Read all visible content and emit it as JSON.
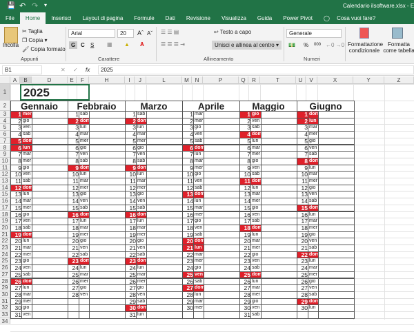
{
  "window": {
    "title": "Calendario ilsoftware.xlsx - Excel",
    "qat": [
      "save-icon",
      "undo-icon",
      "redo-icon",
      "customize-icon"
    ]
  },
  "tabs": [
    "File",
    "Home",
    "Inserisci",
    "Layout di pagina",
    "Formule",
    "Dati",
    "Revisione",
    "Visualizza",
    "Guida",
    "Power Pivot"
  ],
  "tell_me": "Cosa vuoi fare?",
  "ribbon": {
    "clipboard": {
      "paste": "Incolla",
      "cut": "Taglia",
      "copy": "Copia",
      "format_painter": "Copia formato",
      "group": "Appunti"
    },
    "font": {
      "name": "Arial",
      "size": "20",
      "bold": "G",
      "italic": "C",
      "underline": "S",
      "group": "Carattere"
    },
    "alignment": {
      "wrap": "Testo a capo",
      "merge": "Unisci e allinea al centro",
      "group": "Allineamento"
    },
    "number": {
      "format": "Generale",
      "percent": "%",
      "thousands": "000",
      "group": "Numeri"
    },
    "styles": {
      "conditional": "Formattazione condizionale",
      "as_table": "Formatta come tabella"
    }
  },
  "formula_bar": {
    "name_box": "B1",
    "value": "2025",
    "fx": "fx"
  },
  "columns": [
    "A",
    "B",
    "D",
    "E",
    "F",
    "H",
    "I",
    "J",
    "L",
    "M",
    "N",
    "P",
    "Q",
    "R",
    "T",
    "U",
    "V",
    "X",
    "Y",
    "Z"
  ],
  "colors": {
    "accent": "#217346",
    "holiday": "#e0202a"
  },
  "sheet": {
    "year": "2025",
    "months": [
      {
        "name": "Gennaio",
        "weekdays": [
          "mer",
          "gio",
          "ven",
          "sab",
          "dom",
          "lun",
          "mar",
          "mer",
          "gio",
          "ven",
          "sab",
          "dom",
          "lun",
          "mar",
          "mer",
          "gio",
          "ven",
          "sab",
          "dom",
          "lun",
          "mar",
          "mer",
          "gio",
          "ven",
          "sab",
          "dom",
          "lun",
          "mar",
          "mer",
          "gio",
          "ven"
        ],
        "red": [
          1,
          5,
          6,
          12,
          19,
          26
        ]
      },
      {
        "name": "Febbraio",
        "weekdays": [
          "sab",
          "dom",
          "lun",
          "mar",
          "mer",
          "gio",
          "ven",
          "sab",
          "dom",
          "lun",
          "mar",
          "mer",
          "gio",
          "ven",
          "sab",
          "dom",
          "lun",
          "mar",
          "mer",
          "gio",
          "ven",
          "sab",
          "dom",
          "lun",
          "mar",
          "mer",
          "gio",
          "ven"
        ],
        "red": [
          2,
          9,
          16,
          23
        ]
      },
      {
        "name": "Marzo",
        "weekdays": [
          "sab",
          "dom",
          "lun",
          "mar",
          "mer",
          "gio",
          "ven",
          "sab",
          "dom",
          "lun",
          "mar",
          "mer",
          "gio",
          "ven",
          "sab",
          "dom",
          "lun",
          "mar",
          "mer",
          "gio",
          "ven",
          "sab",
          "dom",
          "lun",
          "mar",
          "mer",
          "gio",
          "ven",
          "sab",
          "dom",
          "lun"
        ],
        "red": [
          2,
          9,
          16,
          23,
          30
        ]
      },
      {
        "name": "Aprile",
        "weekdays": [
          "mar",
          "mer",
          "gio",
          "ven",
          "sab",
          "dom",
          "lun",
          "mar",
          "mer",
          "gio",
          "ven",
          "sab",
          "dom",
          "lun",
          "mar",
          "mer",
          "gio",
          "ven",
          "sab",
          "dom",
          "lun",
          "mar",
          "mer",
          "gio",
          "ven",
          "sab",
          "dom",
          "lun",
          "mar",
          "mer"
        ],
        "red": [
          6,
          13,
          20,
          21,
          25,
          27
        ]
      },
      {
        "name": "Maggio",
        "weekdays": [
          "gio",
          "ven",
          "sab",
          "dom",
          "lun",
          "mar",
          "mer",
          "gio",
          "ven",
          "sab",
          "dom",
          "lun",
          "mar",
          "mer",
          "gio",
          "ven",
          "sab",
          "dom",
          "lun",
          "mar",
          "mer",
          "gio",
          "ven",
          "sab",
          "dom",
          "lun",
          "mar",
          "mer",
          "gio",
          "ven",
          "sab"
        ],
        "red": [
          1,
          4,
          11,
          18,
          25
        ]
      },
      {
        "name": "Giugno",
        "weekdays": [
          "dom",
          "lun",
          "mar",
          "mer",
          "gio",
          "ven",
          "sab",
          "dom",
          "lun",
          "mar",
          "mer",
          "gio",
          "ven",
          "sab",
          "dom",
          "lun",
          "mar",
          "mer",
          "gio",
          "ven",
          "sab",
          "dom",
          "lun",
          "mar",
          "mer",
          "gio",
          "ven",
          "sab",
          "dom",
          "lun"
        ],
        "red": [
          1,
          2,
          8,
          15,
          22,
          29
        ]
      }
    ]
  }
}
